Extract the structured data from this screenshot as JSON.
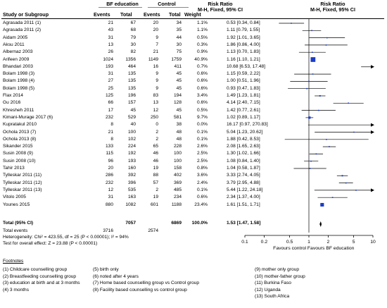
{
  "header": {
    "group_bf": "BF education",
    "group_ctrl": "Control",
    "rr_title": "Risk Ratio",
    "rr_method_left": "M-H, Fixed, 95% CI",
    "rr_title_right": "Risk Ratio",
    "rr_method_right": "M-H, Fixed, 95% CI",
    "study": "Study or Subgroup",
    "events1": "Events",
    "total1": "Total",
    "events2": "Events",
    "total2": "Total",
    "weight": "Weight"
  },
  "studies": [
    {
      "name": "Agrasada 2011 (1)",
      "e1": "21",
      "n1": "67",
      "e2": "20",
      "n2": "34",
      "w": "1.1%",
      "ci": "0.53 [0.34, 0.84]"
    },
    {
      "name": "Agrasada 2011 (2)",
      "e1": "43",
      "n1": "68",
      "e2": "20",
      "n2": "35",
      "w": "1.1%",
      "ci": "1.11 [0.79, 1.55]"
    },
    {
      "name": "Aidam 2005",
      "e1": "31",
      "n1": "79",
      "e2": "9",
      "n2": "44",
      "w": "0.5%",
      "ci": "1.92 [1.01, 3.65]"
    },
    {
      "name": "Aksu 2011",
      "e1": "13",
      "n1": "30",
      "e2": "7",
      "n2": "30",
      "w": "0.3%",
      "ci": "1.86 [0.86, 4.00]"
    },
    {
      "name": "Albernaz 2003",
      "e1": "26",
      "n1": "82",
      "e2": "21",
      "n2": "75",
      "w": "0.9%",
      "ci": "1.13 [0.70, 1.83]"
    },
    {
      "name": "Arifeen 2009",
      "e1": "1024",
      "n1": "1356",
      "e2": "1149",
      "n2": "1759",
      "w": "40.9%",
      "ci": "1.16 [1.10, 1.21]"
    },
    {
      "name": "Bhandari 2003",
      "e1": "193",
      "n1": "464",
      "e2": "16",
      "n2": "411",
      "w": "0.7%",
      "ci": "10.68 [6.53, 17.48]"
    },
    {
      "name": "Bolam 1998 (3)",
      "e1": "31",
      "n1": "135",
      "e2": "9",
      "n2": "45",
      "w": "0.6%",
      "ci": "1.15 [0.59, 2.22]"
    },
    {
      "name": "Bolam 1998 (4)",
      "e1": "27",
      "n1": "135",
      "e2": "9",
      "n2": "45",
      "w": "0.6%",
      "ci": "1.00 [0.51, 1.96]"
    },
    {
      "name": "Bolam 1998 (5)",
      "e1": "25",
      "n1": "135",
      "e2": "9",
      "n2": "45",
      "w": "0.6%",
      "ci": "0.93 [0.47, 1.83]"
    },
    {
      "name": "Flax 2014",
      "e1": "125",
      "n1": "196",
      "e2": "83",
      "n2": "194",
      "w": "3.4%",
      "ci": "1.49 [1.23, 1.81]"
    },
    {
      "name": "Gu 2016",
      "e1": "66",
      "n1": "157",
      "e2": "13",
      "n2": "128",
      "w": "0.6%",
      "ci": "4.14 [2.40, 7.15]"
    },
    {
      "name": "Khresheh 2011",
      "e1": "17",
      "n1": "45",
      "e2": "12",
      "n2": "45",
      "w": "0.5%",
      "ci": "1.42 [0.77, 2.61]"
    },
    {
      "name": "Kimani-Murage 2017 (6)",
      "e1": "232",
      "n1": "529",
      "e2": "250",
      "n2": "581",
      "w": "9.7%",
      "ci": "1.02 [0.89, 1.17]"
    },
    {
      "name": "Kupratakul 2010",
      "e1": "8",
      "n1": "40",
      "e2": "0",
      "n2": "38",
      "w": "0.0%",
      "ci": "16.17 [0.97, 270.83]"
    },
    {
      "name": "Ochola 2013 (7)",
      "e1": "21",
      "n1": "100",
      "e2": "2",
      "n2": "48",
      "w": "0.1%",
      "ci": "5.04 [1.23, 20.62]"
    },
    {
      "name": "Ochola 2013 (8)",
      "e1": "8",
      "n1": "102",
      "e2": "2",
      "n2": "48",
      "w": "0.1%",
      "ci": "1.88 [0.42, 8.53]"
    },
    {
      "name": "Sikander 2015",
      "e1": "133",
      "n1": "224",
      "e2": "65",
      "n2": "228",
      "w": "2.6%",
      "ci": "2.08 [1.65, 2.63]"
    },
    {
      "name": "Susin 2008 (9)",
      "e1": "115",
      "n1": "192",
      "e2": "46",
      "n2": "100",
      "w": "2.5%",
      "ci": "1.30 [1.02, 1.66]"
    },
    {
      "name": "Susin 2008 (10)",
      "e1": "96",
      "n1": "193",
      "e2": "46",
      "n2": "100",
      "w": "2.5%",
      "ci": "1.08 [0.84, 1.40]"
    },
    {
      "name": "Tahir 2013",
      "e1": "20",
      "n1": "160",
      "e2": "19",
      "n2": "158",
      "w": "0.8%",
      "ci": "1.04 [0.58, 1.87]"
    },
    {
      "name": "Tylleskar 2011 (11)",
      "e1": "286",
      "n1": "392",
      "e2": "88",
      "n2": "402",
      "w": "3.6%",
      "ci": "3.33 [2.74, 4.05]"
    },
    {
      "name": "Tylleskar 2011 (12)",
      "e1": "232",
      "n1": "396",
      "e2": "57",
      "n2": "369",
      "w": "2.4%",
      "ci": "3.79 [2.95, 4.88]"
    },
    {
      "name": "Tylleskar 2011 (13)",
      "e1": "12",
      "n1": "535",
      "e2": "2",
      "n2": "485",
      "w": "0.1%",
      "ci": "5.44 [1.22, 24.18]"
    },
    {
      "name": "Vitolo 2005",
      "e1": "31",
      "n1": "163",
      "e2": "19",
      "n2": "234",
      "w": "0.6%",
      "ci": "2.34 [1.37, 4.00]"
    },
    {
      "name": "Younes 2015",
      "e1": "880",
      "n1": "1082",
      "e2": "601",
      "n2": "1188",
      "w": "23.4%",
      "ci": "1.61 [1.51, 1.71]"
    }
  ],
  "total": {
    "label": "Total (95% CI)",
    "n1": "7057",
    "n2": "6869",
    "w": "100.0%",
    "ci": "1.53 [1.47, 1.58]"
  },
  "total_events": {
    "label": "Total events",
    "e1": "3716",
    "e2": "2574"
  },
  "heterogeneity": "Heterogeneity: Chi² = 423.55, df = 25 (P < 0.00001); I² = 94%",
  "overall_effect": "Test for overall effect: Z = 23.88 (P < 0.00001)",
  "axis": {
    "ticks": [
      "0.1",
      "0.2",
      "0.5",
      "1",
      "2",
      "5",
      "10"
    ],
    "left_label": "Favours control",
    "right_label": "Favours BF education"
  },
  "footnotes": {
    "title": "Footnotes",
    "col1": [
      "(1) Childcare counselling group",
      "(2) Breastfeeding counselling group",
      "(3) education at birth and at 3 months",
      "(4) 3 months"
    ],
    "col2": [
      "(5) birth only",
      "(6) noted after 4 years",
      "(7) Home based counselling group vs Control group",
      "(8) Facility based counselling vs control group"
    ],
    "col3": [
      "(9) mother only group",
      "(10) mother-father group",
      "(11) Burkina Faso",
      "(12) Uganda",
      "(13) South Africa"
    ]
  },
  "colors": {
    "square": "#1a3cc8",
    "line": "#000000",
    "diamond": "#000000"
  },
  "chart_data": {
    "type": "forest",
    "scale": "log",
    "xlim": [
      0.1,
      10
    ],
    "x_ticks": [
      0.1,
      0.2,
      0.5,
      1,
      2,
      5,
      10
    ],
    "xlabel_left": "Favours control",
    "xlabel_right": "Favours BF education",
    "studies": [
      {
        "rr": 0.53,
        "lo": 0.34,
        "hi": 0.84,
        "weight": 1.1
      },
      {
        "rr": 1.11,
        "lo": 0.79,
        "hi": 1.55,
        "weight": 1.1
      },
      {
        "rr": 1.92,
        "lo": 1.01,
        "hi": 3.65,
        "weight": 0.5
      },
      {
        "rr": 1.86,
        "lo": 0.86,
        "hi": 4.0,
        "weight": 0.3
      },
      {
        "rr": 1.13,
        "lo": 0.7,
        "hi": 1.83,
        "weight": 0.9
      },
      {
        "rr": 1.16,
        "lo": 1.1,
        "hi": 1.21,
        "weight": 40.9
      },
      {
        "rr": 10.68,
        "lo": 6.53,
        "hi": 17.48,
        "weight": 0.7
      },
      {
        "rr": 1.15,
        "lo": 0.59,
        "hi": 2.22,
        "weight": 0.6
      },
      {
        "rr": 1.0,
        "lo": 0.51,
        "hi": 1.96,
        "weight": 0.6
      },
      {
        "rr": 0.93,
        "lo": 0.47,
        "hi": 1.83,
        "weight": 0.6
      },
      {
        "rr": 1.49,
        "lo": 1.23,
        "hi": 1.81,
        "weight": 3.4
      },
      {
        "rr": 4.14,
        "lo": 2.4,
        "hi": 7.15,
        "weight": 0.6
      },
      {
        "rr": 1.42,
        "lo": 0.77,
        "hi": 2.61,
        "weight": 0.5
      },
      {
        "rr": 1.02,
        "lo": 0.89,
        "hi": 1.17,
        "weight": 9.7
      },
      {
        "rr": 16.17,
        "lo": 0.97,
        "hi": 270.83,
        "weight": 0.0
      },
      {
        "rr": 5.04,
        "lo": 1.23,
        "hi": 20.62,
        "weight": 0.1
      },
      {
        "rr": 1.88,
        "lo": 0.42,
        "hi": 8.53,
        "weight": 0.1
      },
      {
        "rr": 2.08,
        "lo": 1.65,
        "hi": 2.63,
        "weight": 2.6
      },
      {
        "rr": 1.3,
        "lo": 1.02,
        "hi": 1.66,
        "weight": 2.5
      },
      {
        "rr": 1.08,
        "lo": 0.84,
        "hi": 1.4,
        "weight": 2.5
      },
      {
        "rr": 1.04,
        "lo": 0.58,
        "hi": 1.87,
        "weight": 0.8
      },
      {
        "rr": 3.33,
        "lo": 2.74,
        "hi": 4.05,
        "weight": 3.6
      },
      {
        "rr": 3.79,
        "lo": 2.95,
        "hi": 4.88,
        "weight": 2.4
      },
      {
        "rr": 5.44,
        "lo": 1.22,
        "hi": 24.18,
        "weight": 0.1
      },
      {
        "rr": 2.34,
        "lo": 1.37,
        "hi": 4.0,
        "weight": 0.6
      },
      {
        "rr": 1.61,
        "lo": 1.51,
        "hi": 1.71,
        "weight": 23.4
      }
    ],
    "pooled": {
      "rr": 1.53,
      "lo": 1.47,
      "hi": 1.58
    }
  }
}
